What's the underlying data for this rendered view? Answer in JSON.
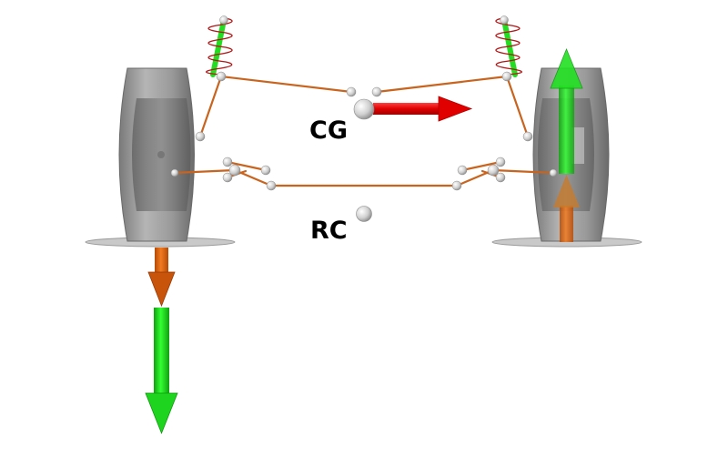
{
  "labels": {
    "cg": "CG",
    "rc": "RC"
  },
  "colors": {
    "background": "#ffffff",
    "tire": "#9a9a9a",
    "tire_dark": "#6e6e6e",
    "control_arm": "#c8641e",
    "spring_coil": "#b01818",
    "damper": "#22dd22",
    "lateral_force_arrow": "#e00000",
    "load_arrow": "#00dd00",
    "roll_center_load_arrow": "#e06010",
    "joint": "#e6e6e6",
    "ground_pad": "#c8c8c8"
  },
  "icons": {
    "joints": "ball-joint-icon",
    "spring": "coil-spring-icon",
    "lateral_force": "arrow-right-icon",
    "left_load": "arrow-down-icon",
    "right_load": "arrow-up-icon"
  }
}
